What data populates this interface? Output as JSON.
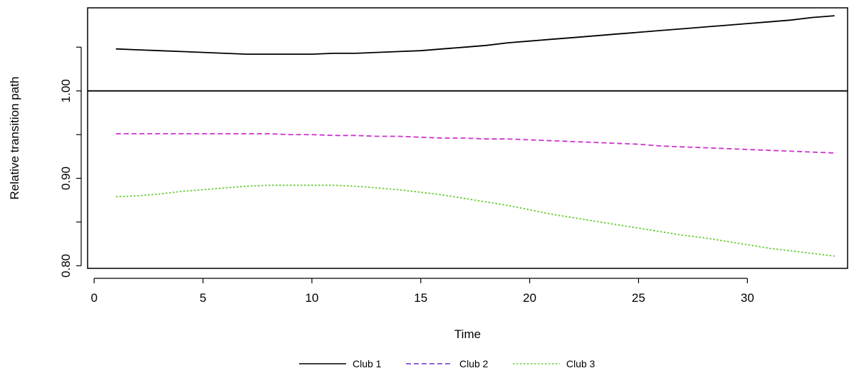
{
  "chart_data": {
    "type": "line",
    "title": "",
    "xlabel": "Time",
    "ylabel": "Relative transition path",
    "xlim": [
      -0.3,
      34.6
    ],
    "ylim": [
      0.797,
      1.095
    ],
    "x_ticks": [
      0,
      5,
      10,
      15,
      20,
      25,
      30
    ],
    "x_tick_labels": [
      "0",
      "5",
      "10",
      "15",
      "20",
      "25",
      "30"
    ],
    "y_ticks": [
      0.8,
      0.9,
      1.0
    ],
    "y_tick_labels": [
      "0.80",
      "0.90",
      "1.00"
    ],
    "y_minor_ticks": [
      0.85,
      0.95,
      1.05
    ],
    "reference_line": {
      "y": 1.0,
      "color": "#000000"
    },
    "grid": false,
    "legend_position": "bottom-center",
    "x": [
      1,
      2,
      3,
      4,
      5,
      6,
      7,
      8,
      9,
      10,
      11,
      12,
      13,
      14,
      15,
      16,
      17,
      18,
      19,
      20,
      21,
      22,
      23,
      24,
      25,
      26,
      27,
      28,
      29,
      30,
      31,
      32,
      33,
      34
    ],
    "series": [
      {
        "name": "Club 1",
        "color": "#000000",
        "dash": "solid",
        "values": [
          1.048,
          1.047,
          1.046,
          1.045,
          1.044,
          1.043,
          1.042,
          1.042,
          1.042,
          1.042,
          1.043,
          1.043,
          1.044,
          1.045,
          1.046,
          1.048,
          1.05,
          1.052,
          1.055,
          1.057,
          1.059,
          1.061,
          1.063,
          1.065,
          1.067,
          1.069,
          1.071,
          1.073,
          1.075,
          1.077,
          1.079,
          1.081,
          1.084,
          1.086
        ]
      },
      {
        "name": "Club 2",
        "color": "#cc33cc",
        "legend_color": "#6633cc",
        "dash": "dashed",
        "values": [
          0.951,
          0.951,
          0.951,
          0.951,
          0.951,
          0.951,
          0.951,
          0.951,
          0.95,
          0.95,
          0.949,
          0.949,
          0.948,
          0.948,
          0.947,
          0.946,
          0.946,
          0.945,
          0.945,
          0.944,
          0.943,
          0.942,
          0.941,
          0.94,
          0.939,
          0.937,
          0.936,
          0.935,
          0.934,
          0.933,
          0.932,
          0.931,
          0.93,
          0.929
        ]
      },
      {
        "name": "Club 3",
        "color": "#66cc33",
        "dash": "dotted",
        "values": [
          0.879,
          0.88,
          0.882,
          0.885,
          0.887,
          0.889,
          0.891,
          0.892,
          0.892,
          0.892,
          0.892,
          0.891,
          0.889,
          0.887,
          0.884,
          0.881,
          0.877,
          0.873,
          0.869,
          0.864,
          0.859,
          0.855,
          0.851,
          0.847,
          0.843,
          0.839,
          0.835,
          0.832,
          0.828,
          0.824,
          0.82,
          0.817,
          0.814,
          0.811
        ]
      }
    ]
  }
}
